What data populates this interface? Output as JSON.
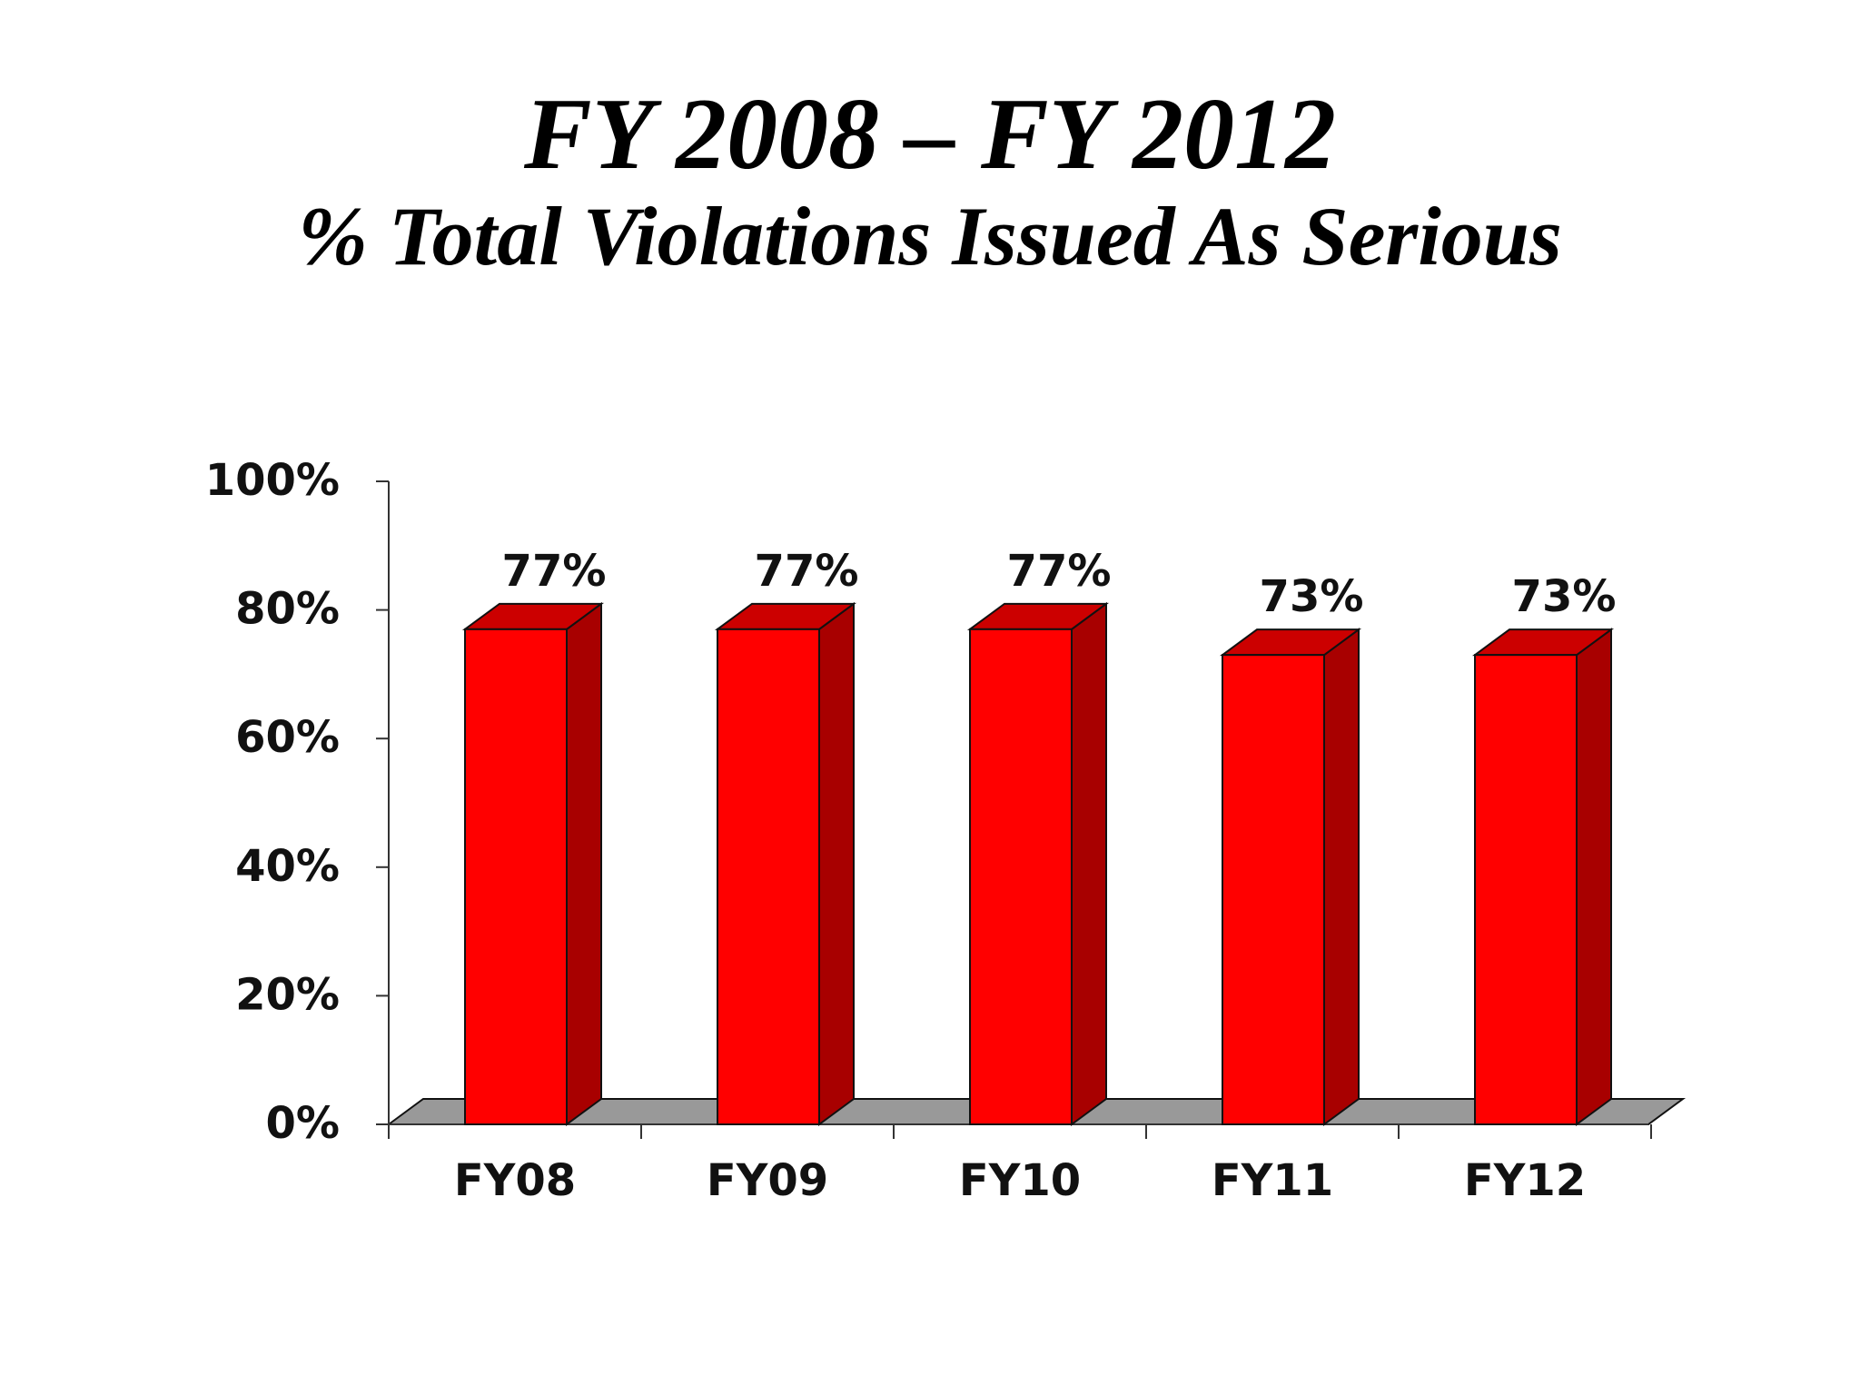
{
  "slide": {
    "title": "FY 2008 – FY 2012",
    "subtitle": "% Total Violations Issued As Serious"
  },
  "colors": {
    "bar_front": "#ff0000",
    "bar_side": "#a80000",
    "bar_top": "#cc0000",
    "floor": "#999999",
    "outline": "#111111"
  },
  "chart_data": {
    "type": "bar",
    "style": "3d",
    "title": "FY 2008 – FY 2012",
    "subtitle": "% Total Violations Issued As Serious",
    "categories": [
      "FY08",
      "FY09",
      "FY10",
      "FY11",
      "FY12"
    ],
    "values": [
      77,
      77,
      77,
      73,
      73
    ],
    "data_labels": [
      "77%",
      "77%",
      "77%",
      "73%",
      "73%"
    ],
    "ylim": [
      0,
      100
    ],
    "yticks": [
      0,
      20,
      40,
      60,
      80,
      100
    ],
    "ytick_labels": [
      "0%",
      "20%",
      "40%",
      "60%",
      "80%",
      "100%"
    ],
    "xlabel": "",
    "ylabel": "",
    "grid": false,
    "legend": "none"
  }
}
